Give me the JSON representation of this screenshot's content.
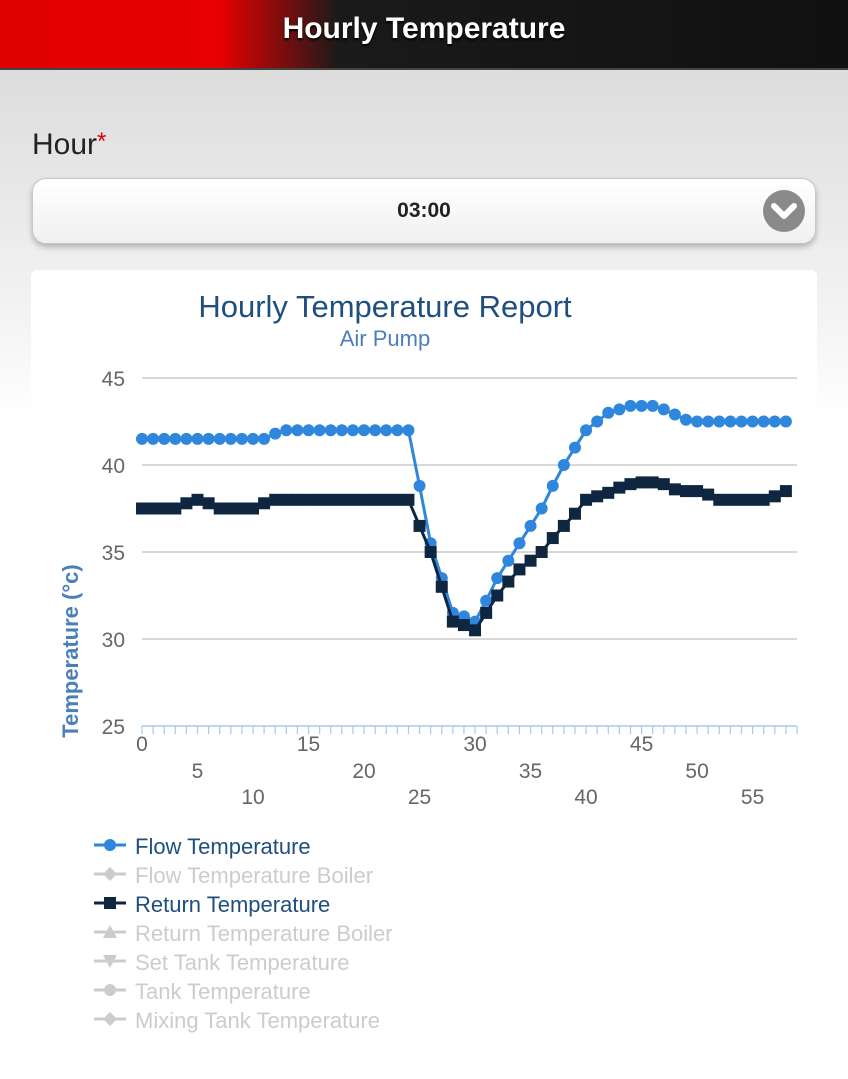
{
  "header": {
    "title": "Hourly Temperature"
  },
  "hour": {
    "label": "Hour",
    "required_mark": "*",
    "value": "03:00"
  },
  "colors": {
    "flow": "#2f86dd",
    "return": "#0f2640",
    "inactive": "#cccccc",
    "title": "#1f4f7f",
    "subtitle": "#4a7fb8",
    "axis_label": "#4a7fb8",
    "grid": "#c0c0c0",
    "tick": "#666666"
  },
  "legend": [
    {
      "label": "Flow Temperature",
      "symbol": "circle",
      "active": true
    },
    {
      "label": "Flow Temperature Boiler",
      "symbol": "diamond",
      "active": false
    },
    {
      "label": "Return Temperature",
      "symbol": "square",
      "active": true
    },
    {
      "label": "Return Temperature Boiler",
      "symbol": "triangle",
      "active": false
    },
    {
      "label": "Set Tank Temperature",
      "symbol": "triangle-down",
      "active": false
    },
    {
      "label": "Tank Temperature",
      "symbol": "circle",
      "active": false
    },
    {
      "label": "Mixing Tank Temperature",
      "symbol": "diamond",
      "active": false
    }
  ],
  "chart_data": {
    "type": "line",
    "title": "Hourly Temperature Report",
    "subtitle": "Air Pump",
    "ylabel": "Temperature (°c)",
    "xlabel": "",
    "ylim": [
      25,
      45
    ],
    "yticks": [
      25,
      30,
      35,
      40,
      45
    ],
    "xlim": [
      0,
      59
    ],
    "xticks": [
      0,
      5,
      10,
      15,
      20,
      25,
      30,
      35,
      40,
      45,
      50,
      55
    ],
    "grid": true,
    "legend_position": "bottom",
    "x": [
      0,
      1,
      2,
      3,
      4,
      5,
      6,
      7,
      8,
      9,
      10,
      11,
      12,
      13,
      14,
      15,
      16,
      17,
      18,
      19,
      20,
      21,
      22,
      23,
      24,
      25,
      26,
      27,
      28,
      29,
      30,
      31,
      32,
      33,
      34,
      35,
      36,
      37,
      38,
      39,
      40,
      41,
      42,
      43,
      44,
      45,
      46,
      47,
      48,
      49,
      50,
      51,
      52,
      53,
      54,
      55,
      56,
      57,
      58
    ],
    "series": [
      {
        "name": "Flow Temperature",
        "values": [
          41.5,
          41.5,
          41.5,
          41.5,
          41.5,
          41.5,
          41.5,
          41.5,
          41.5,
          41.5,
          41.5,
          41.5,
          41.8,
          42,
          42,
          42,
          42,
          42,
          42,
          42,
          42,
          42,
          42,
          42,
          42,
          38.8,
          35.5,
          33.5,
          31.5,
          31.3,
          31.0,
          32.2,
          33.5,
          34.5,
          35.5,
          36.5,
          37.5,
          38.8,
          40.0,
          41.0,
          42.0,
          42.5,
          43.0,
          43.2,
          43.4,
          43.4,
          43.4,
          43.2,
          42.9,
          42.6,
          42.5,
          42.5,
          42.5,
          42.5,
          42.5,
          42.5,
          42.5,
          42.5,
          42.5
        ]
      },
      {
        "name": "Return Temperature",
        "values": [
          37.5,
          37.5,
          37.5,
          37.5,
          37.8,
          38,
          37.8,
          37.5,
          37.5,
          37.5,
          37.5,
          37.8,
          38,
          38,
          38,
          38,
          38,
          38,
          38,
          38,
          38,
          38,
          38,
          38,
          38,
          36.5,
          35.0,
          33.0,
          31.0,
          30.8,
          30.5,
          31.5,
          32.5,
          33.3,
          34.0,
          34.5,
          35.0,
          35.8,
          36.5,
          37.2,
          38.0,
          38.2,
          38.4,
          38.7,
          38.9,
          39.0,
          39.0,
          38.9,
          38.6,
          38.5,
          38.5,
          38.3,
          38.0,
          38.0,
          38.0,
          38.0,
          38.0,
          38.2,
          38.5
        ]
      }
    ]
  }
}
